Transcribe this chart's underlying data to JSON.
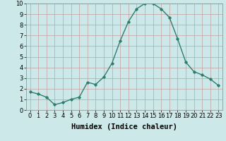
{
  "x": [
    0,
    1,
    2,
    3,
    4,
    5,
    6,
    7,
    8,
    9,
    10,
    11,
    12,
    13,
    14,
    15,
    16,
    17,
    18,
    19,
    20,
    21,
    22,
    23
  ],
  "y": [
    1.7,
    1.5,
    1.2,
    0.5,
    0.7,
    1.0,
    1.2,
    2.6,
    2.4,
    3.1,
    4.4,
    6.5,
    8.3,
    9.5,
    10.0,
    10.0,
    9.5,
    8.7,
    6.7,
    4.5,
    3.6,
    3.3,
    2.9,
    2.3
  ],
  "line_color": "#2e7d6e",
  "marker": "D",
  "marker_size": 1.8,
  "bg_color": "#cce8e8",
  "grid_color": "#c4a0a0",
  "xlabel": "Humidex (Indice chaleur)",
  "xlim": [
    -0.5,
    23.5
  ],
  "ylim": [
    0,
    10
  ],
  "xticks": [
    0,
    1,
    2,
    3,
    4,
    5,
    6,
    7,
    8,
    9,
    10,
    11,
    12,
    13,
    14,
    15,
    16,
    17,
    18,
    19,
    20,
    21,
    22,
    23
  ],
  "yticks": [
    0,
    1,
    2,
    3,
    4,
    5,
    6,
    7,
    8,
    9,
    10
  ],
  "xlabel_fontsize": 7.5,
  "tick_fontsize": 6.0,
  "linewidth": 1.0
}
